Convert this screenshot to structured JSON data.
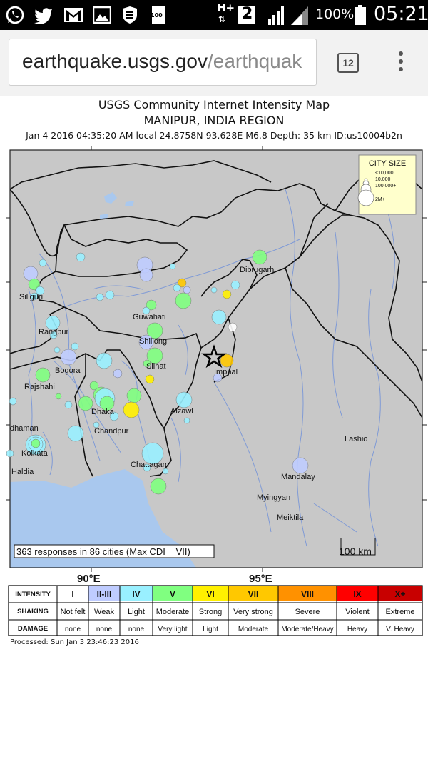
{
  "status_bar": {
    "battery": "100%",
    "time": "05:21",
    "network": "H+",
    "sim_badge": "2",
    "notif_badge": "100",
    "icons": [
      "whatsapp-icon",
      "twitter-icon",
      "gmail-icon",
      "gallery-icon",
      "shield-icon",
      "notification-icon",
      "signal-icon",
      "battery-icon"
    ]
  },
  "browser": {
    "url_domain": "earthquake.usgs.gov",
    "url_rest": "/earthquak",
    "tab_count": "12"
  },
  "map": {
    "title": "USGS Community Internet Intensity Map",
    "region": "MANIPUR, INDIA REGION",
    "event_info": "Jan 4 2016 04:35:20 AM local 24.8758N 93.628E M6.8 Depth: 35 km ID:us10004b2n",
    "city_size": {
      "title": "CITY SIZE",
      "items": [
        "<10,000",
        "10,000+",
        "100,000+",
        "2M+"
      ]
    },
    "responses": "363 responses in 86 cities (Max CDI = VII)",
    "scale_label": "100 km",
    "lon_labels": [
      "90°E",
      "95°E"
    ],
    "cities": [
      {
        "name": "Dibrugarh"
      },
      {
        "name": "Siliguri"
      },
      {
        "name": "Guwahati"
      },
      {
        "name": "Rangpur"
      },
      {
        "name": "Shillong"
      },
      {
        "name": "Silhat"
      },
      {
        "name": "Imphal"
      },
      {
        "name": "Bogora"
      },
      {
        "name": "Rajshahi"
      },
      {
        "name": "Dhaka"
      },
      {
        "name": "Aizawl"
      },
      {
        "name": "Chandpur"
      },
      {
        "name": "dhaman"
      },
      {
        "name": "Kolkata"
      },
      {
        "name": "Haldia"
      },
      {
        "name": "Chattagam"
      },
      {
        "name": "Lashio"
      },
      {
        "name": "Mandalay"
      },
      {
        "name": "Myingyan"
      },
      {
        "name": "Meiktila"
      }
    ],
    "colors": {
      "land": "#c8c8c8",
      "water": "#a9c8ee",
      "river": "#7f9ad6"
    }
  },
  "legend": {
    "row_labels": [
      "INTENSITY",
      "SHAKING",
      "DAMAGE"
    ],
    "columns": [
      {
        "intensity": "I",
        "shaking": "Not felt",
        "damage": "none",
        "color": "#ffffff"
      },
      {
        "intensity": "II-III",
        "shaking": "Weak",
        "damage": "none",
        "color": "#bfccff"
      },
      {
        "intensity": "IV",
        "shaking": "Light",
        "damage": "none",
        "color": "#99f0ff"
      },
      {
        "intensity": "V",
        "shaking": "Moderate",
        "damage": "Very light",
        "color": "#80ff80"
      },
      {
        "intensity": "VI",
        "shaking": "Strong",
        "damage": "Light",
        "color": "#fff000"
      },
      {
        "intensity": "VII",
        "shaking": "Very strong",
        "damage": "Moderate",
        "color": "#ffc800"
      },
      {
        "intensity": "VIII",
        "shaking": "Severe",
        "damage": "Moderate/Heavy",
        "color": "#ff9100"
      },
      {
        "intensity": "IX",
        "shaking": "Violent",
        "damage": "Heavy",
        "color": "#ff0000"
      },
      {
        "intensity": "X+",
        "shaking": "Extreme",
        "damage": "V. Heavy",
        "color": "#c80000"
      }
    ]
  },
  "processed": "Processed: Sun Jan  3 23:46:23 2016"
}
